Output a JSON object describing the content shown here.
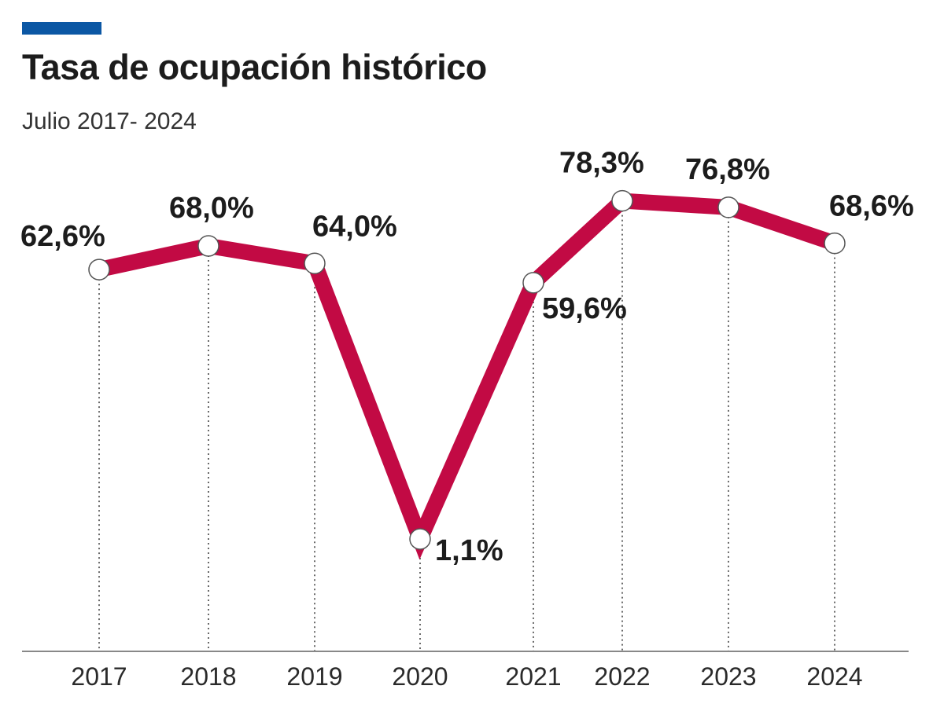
{
  "title": "Tasa de ocupación histórico",
  "subtitle": "Julio 2017- 2024",
  "colors": {
    "accent_bar": "#0b57a4",
    "line": "#c20a44",
    "marker_fill": "#ffffff",
    "marker_stroke": "#555555",
    "axis": "#888888"
  },
  "chart_data": {
    "type": "line",
    "title": "Tasa de ocupación histórico",
    "subtitle": "Julio 2017- 2024",
    "xlabel": "",
    "ylabel": "",
    "grid": false,
    "legend": "none",
    "x": [
      "2017",
      "2018",
      "2019",
      "2020",
      "2021",
      "2022",
      "2023",
      "2024"
    ],
    "series": [
      {
        "values": [
          62.6,
          68.0,
          64.0,
          1.1,
          59.6,
          78.3,
          76.8,
          68.6
        ],
        "labels": [
          "62,6%",
          "68,0%",
          "64,0%",
          "1,1%",
          "59,6%",
          "78,3%",
          "76,8%",
          "68,6%"
        ]
      }
    ]
  }
}
